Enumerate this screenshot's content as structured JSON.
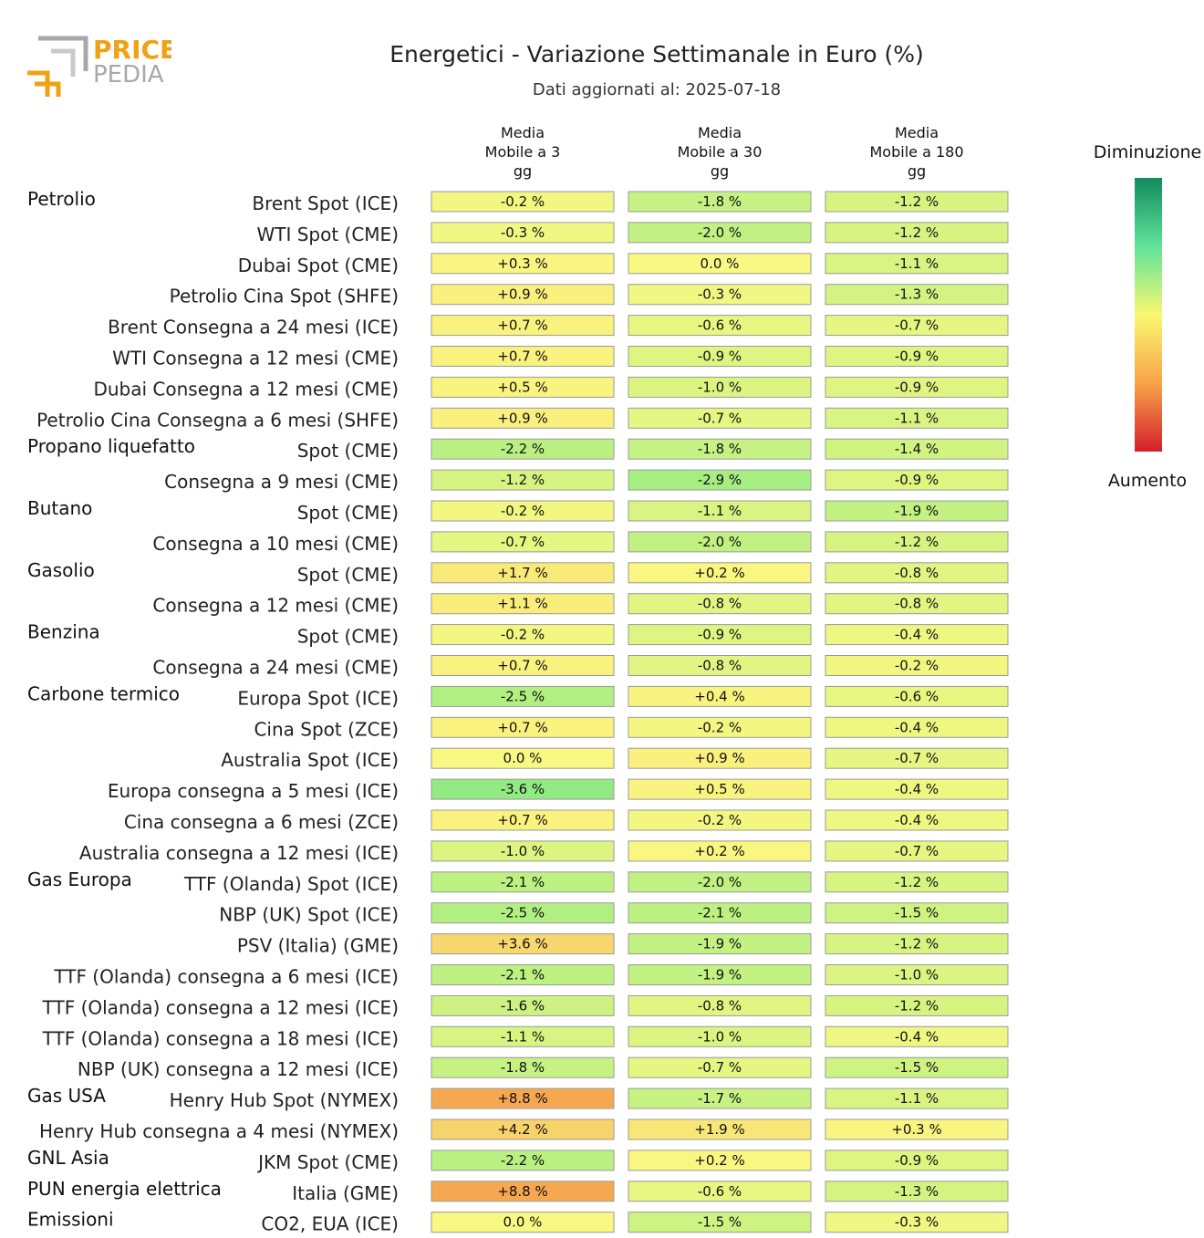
{
  "logo": {
    "line1": "PRICE",
    "line2": "PEDIA"
  },
  "chart_data": {
    "type": "table",
    "title": "Energetici - Variazione Settimanale in Euro (%)",
    "subtitle": "Dati aggiornati al: 2025-07-18",
    "columns": [
      [
        "Media",
        "Mobile a 3",
        "gg"
      ],
      [
        "Media",
        "Mobile a 30",
        "gg"
      ],
      [
        "Media",
        "Mobile a 180",
        "gg"
      ]
    ],
    "legend": {
      "top": "Diminuzione",
      "bottom": "Aumento",
      "colors": [
        "#138a5e",
        "#5fe39a",
        "#f9f871",
        "#f8a447",
        "#d41e2a"
      ]
    },
    "unit": "%",
    "rows": [
      {
        "group": "Petrolio",
        "label": "Brent Spot (ICE)",
        "values": [
          -0.2,
          -1.8,
          -1.2
        ]
      },
      {
        "group": "",
        "label": "WTI Spot (CME)",
        "values": [
          -0.3,
          -2.0,
          -1.2
        ]
      },
      {
        "group": "",
        "label": "Dubai Spot (CME)",
        "values": [
          0.3,
          0.0,
          -1.1
        ]
      },
      {
        "group": "",
        "label": "Petrolio Cina Spot (SHFE)",
        "values": [
          0.9,
          -0.3,
          -1.3
        ]
      },
      {
        "group": "",
        "label": "Brent Consegna a 24 mesi (ICE)",
        "values": [
          0.7,
          -0.6,
          -0.7
        ]
      },
      {
        "group": "",
        "label": "WTI Consegna a 12 mesi (CME)",
        "values": [
          0.7,
          -0.9,
          -0.9
        ]
      },
      {
        "group": "",
        "label": "Dubai Consegna a 12 mesi (CME)",
        "values": [
          0.5,
          -1.0,
          -0.9
        ]
      },
      {
        "group": "",
        "label": "Petrolio Cina Consegna a 6 mesi (SHFE)",
        "values": [
          0.9,
          -0.7,
          -1.1
        ]
      },
      {
        "group": "Propano liquefatto",
        "label": "Spot (CME)",
        "values": [
          -2.2,
          -1.8,
          -1.4
        ]
      },
      {
        "group": "",
        "label": "Consegna a 9 mesi (CME)",
        "values": [
          -1.2,
          -2.9,
          -0.9
        ]
      },
      {
        "group": "Butano",
        "label": "Spot (CME)",
        "values": [
          -0.2,
          -1.1,
          -1.9
        ]
      },
      {
        "group": "",
        "label": "Consegna a 10 mesi (CME)",
        "values": [
          -0.7,
          -2.0,
          -1.2
        ]
      },
      {
        "group": "Gasolio",
        "label": "Spot (CME)",
        "values": [
          1.7,
          0.2,
          -0.8
        ]
      },
      {
        "group": "",
        "label": "Consegna a 12 mesi (CME)",
        "values": [
          1.1,
          -0.8,
          -0.8
        ]
      },
      {
        "group": "Benzina",
        "label": "Spot (CME)",
        "values": [
          -0.2,
          -0.9,
          -0.4
        ]
      },
      {
        "group": "",
        "label": "Consegna a 24 mesi (CME)",
        "values": [
          0.7,
          -0.8,
          -0.2
        ]
      },
      {
        "group": "Carbone termico",
        "label": "Europa Spot (ICE)",
        "values": [
          -2.5,
          0.4,
          -0.6
        ]
      },
      {
        "group": "",
        "label": "Cina Spot (ZCE)",
        "values": [
          0.7,
          -0.2,
          -0.4
        ]
      },
      {
        "group": "",
        "label": "Australia Spot (ICE)",
        "values": [
          0.0,
          0.9,
          -0.7
        ]
      },
      {
        "group": "",
        "label": "Europa consegna a 5 mesi (ICE)",
        "values": [
          -3.6,
          0.5,
          -0.4
        ]
      },
      {
        "group": "",
        "label": "Cina consegna a 6 mesi (ZCE)",
        "values": [
          0.7,
          -0.2,
          -0.4
        ]
      },
      {
        "group": "",
        "label": "Australia consegna a 12 mesi (ICE)",
        "values": [
          -1.0,
          0.2,
          -0.7
        ]
      },
      {
        "group": "Gas Europa",
        "label": "TTF (Olanda) Spot (ICE)",
        "values": [
          -2.1,
          -2.0,
          -1.2
        ]
      },
      {
        "group": "",
        "label": "NBP (UK) Spot (ICE)",
        "values": [
          -2.5,
          -2.1,
          -1.5
        ]
      },
      {
        "group": "",
        "label": "PSV (Italia) (GME)",
        "values": [
          3.6,
          -1.9,
          -1.2
        ]
      },
      {
        "group": "",
        "label": "TTF (Olanda) consegna a 6 mesi (ICE)",
        "values": [
          -2.1,
          -1.9,
          -1.0
        ]
      },
      {
        "group": "",
        "label": "TTF (Olanda) consegna a 12 mesi (ICE)",
        "values": [
          -1.6,
          -0.8,
          -1.2
        ]
      },
      {
        "group": "",
        "label": "TTF (Olanda) consegna a 18 mesi (ICE)",
        "values": [
          -1.1,
          -1.0,
          -0.4
        ]
      },
      {
        "group": "",
        "label": "NBP (UK) consegna a 12 mesi (ICE)",
        "values": [
          -1.8,
          -0.7,
          -1.5
        ]
      },
      {
        "group": "Gas USA",
        "label": "Henry Hub Spot (NYMEX)",
        "values": [
          8.8,
          -1.7,
          -1.1
        ]
      },
      {
        "group": "",
        "label": "Henry Hub consegna a 4 mesi (NYMEX)",
        "values": [
          4.2,
          1.9,
          0.3
        ]
      },
      {
        "group": "GNL Asia",
        "label": "JKM Spot (CME)",
        "values": [
          -2.2,
          0.2,
          -0.9
        ]
      },
      {
        "group": "PUN energia elettrica",
        "label": "Italia (GME)",
        "values": [
          8.8,
          -0.6,
          -1.3
        ]
      },
      {
        "group": "Emissioni",
        "label": "CO2, EUA (ICE)",
        "values": [
          0.0,
          -1.5,
          -0.3
        ]
      }
    ]
  }
}
